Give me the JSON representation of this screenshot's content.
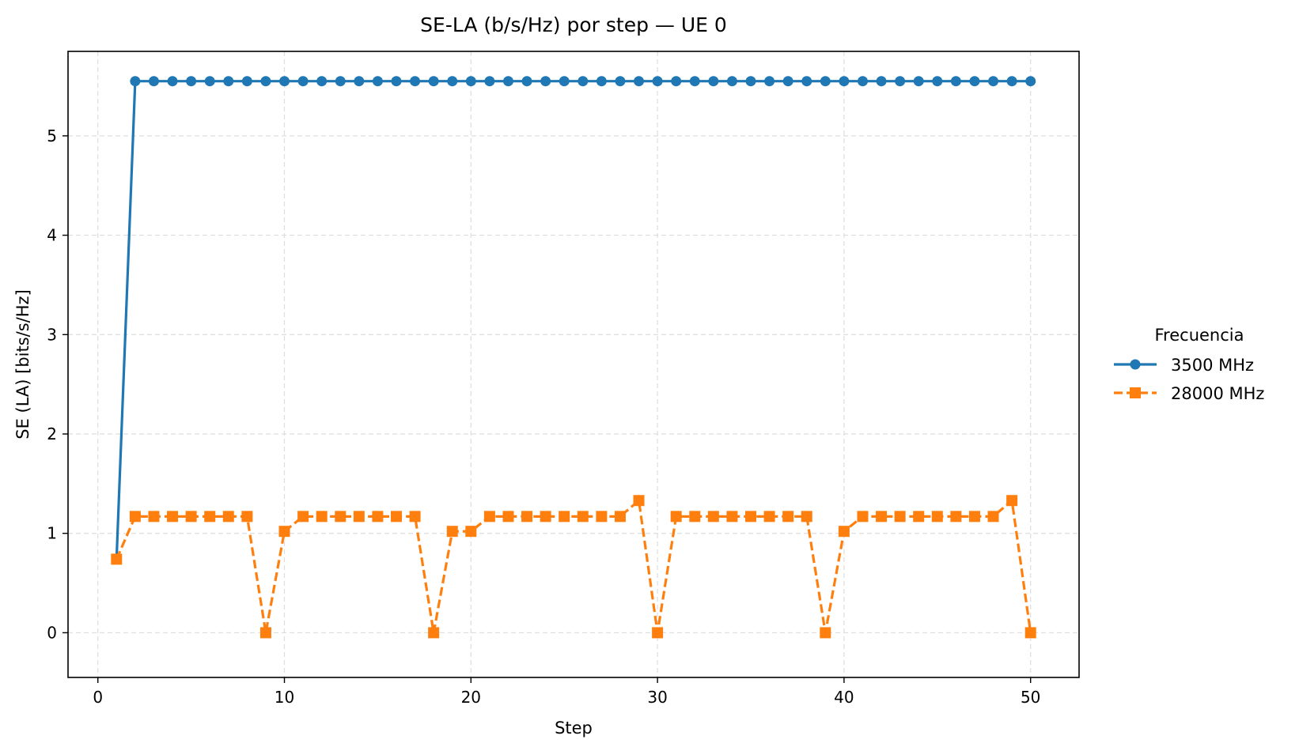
{
  "chart_data": {
    "type": "line",
    "title": "SE-LA (b/s/Hz) por step — UE 0",
    "xlabel": "Step",
    "ylabel": "SE (LA) [bits/s/Hz]",
    "xlim": [
      -1.6,
      52.6
    ],
    "ylim": [
      -0.45,
      5.85
    ],
    "xticks": [
      0,
      10,
      20,
      30,
      40,
      50
    ],
    "yticks": [
      0,
      1,
      2,
      3,
      4,
      5
    ],
    "grid": true,
    "legend": {
      "title": "Frecuencia",
      "placement": "outside-right"
    },
    "x": [
      1,
      2,
      3,
      4,
      5,
      6,
      7,
      8,
      9,
      10,
      11,
      12,
      13,
      14,
      15,
      16,
      17,
      18,
      19,
      20,
      21,
      22,
      23,
      24,
      25,
      26,
      27,
      28,
      29,
      30,
      31,
      32,
      33,
      34,
      35,
      36,
      37,
      38,
      39,
      40,
      41,
      42,
      43,
      44,
      45,
      46,
      47,
      48,
      49,
      50
    ],
    "series": [
      {
        "name": "3500 MHz",
        "color": "#1f77b4",
        "marker": "circle",
        "linestyle": "solid",
        "values": [
          0.74,
          5.55,
          5.55,
          5.55,
          5.55,
          5.55,
          5.55,
          5.55,
          5.55,
          5.55,
          5.55,
          5.55,
          5.55,
          5.55,
          5.55,
          5.55,
          5.55,
          5.55,
          5.55,
          5.55,
          5.55,
          5.55,
          5.55,
          5.55,
          5.55,
          5.55,
          5.55,
          5.55,
          5.55,
          5.55,
          5.55,
          5.55,
          5.55,
          5.55,
          5.55,
          5.55,
          5.55,
          5.55,
          5.55,
          5.55,
          5.55,
          5.55,
          5.55,
          5.55,
          5.55,
          5.55,
          5.55,
          5.55,
          5.55,
          5.55
        ]
      },
      {
        "name": "28000 MHz",
        "color": "#ff7f0e",
        "marker": "square",
        "linestyle": "dashed",
        "values": [
          0.74,
          1.17,
          1.17,
          1.17,
          1.17,
          1.17,
          1.17,
          1.17,
          0.0,
          1.02,
          1.17,
          1.17,
          1.17,
          1.17,
          1.17,
          1.17,
          1.17,
          0.0,
          1.02,
          1.02,
          1.17,
          1.17,
          1.17,
          1.17,
          1.17,
          1.17,
          1.17,
          1.17,
          1.33,
          0.0,
          1.17,
          1.17,
          1.17,
          1.17,
          1.17,
          1.17,
          1.17,
          1.17,
          0.0,
          1.02,
          1.17,
          1.17,
          1.17,
          1.17,
          1.17,
          1.17,
          1.17,
          1.17,
          1.33,
          0.0
        ]
      }
    ]
  }
}
